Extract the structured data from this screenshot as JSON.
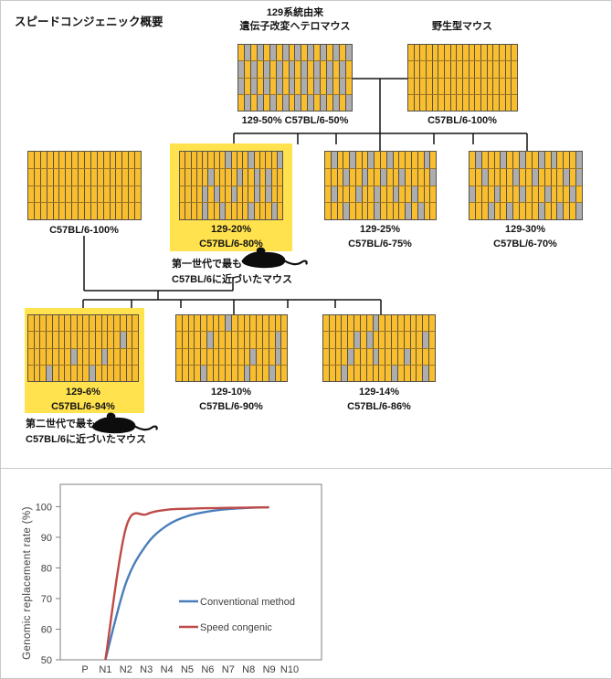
{
  "title": "スピードコンジェニック概要",
  "colors": {
    "chromosome_b6_yellow": "#F9BE2D",
    "chromosome_129_gray": "#ADADAD",
    "highlight_yellow": "#FFE24D",
    "conventional_blue": "#4A7EBB",
    "speed_red": "#BE4B48",
    "connector_black": "#141414"
  },
  "pedigree": {
    "founder_hetero": {
      "top_line1": "129系統由来",
      "top_line2": "遺伝子改変ヘテロマウス",
      "bottom": "129-50% C57BL/6-50%",
      "pattern": [
        "YGYGYGYGYGYGYGYGYG",
        "GYGYGYGYGYGYGYGYGY",
        "GYGYGYGYGYGYGYGYGY",
        "YGYGYGYGYGYGYGYGYG"
      ]
    },
    "founder_wild": {
      "top_line1": "野生型マウス",
      "bottom": "C57BL/6-100%",
      "pattern": [
        "YYYYYYYYYYYYYYYYYY",
        "YYYYYYYYYYYYYYYYYY",
        "YYYYYYYYYYYYYYYYYY",
        "YYYYYYYYYYYYYYYYYY"
      ]
    },
    "gen1_wild": {
      "bottom": "C57BL/6-100%",
      "pattern": [
        "YYYYYYYYYYYYYYYYYY",
        "YYYYYYYYYYYYYYYYYY",
        "YYYYYYYYYYYYYYYYYY",
        "YYYYYYYYYYYYYYYYYY"
      ]
    },
    "gen1_best": {
      "line1": "129-20%",
      "line2": "C57BL/6-80%",
      "highlighted": true,
      "pattern": [
        "YYYYYYYYGYYYGYYYYG",
        "YYYYYGYYYYGYYGYGYY",
        "YYYYGYGYYGYYYGYGYY",
        "YYYYGYYGYYYYGYYYGY"
      ]
    },
    "gen1_b": {
      "line1": "129-25%",
      "line2": "C57BL/6-75%",
      "pattern": [
        "YGYYGYYGYYGYYYYYGY",
        "YYYGYYGYYGYYGYYYYG",
        "YGYYYGYYGYYGYYGYYY",
        "YYYGYYYYGYYYYGYGYY"
      ]
    },
    "gen1_c": {
      "line1": "129-30%",
      "line2": "C57BL/6-70%",
      "pattern": [
        "YGYYYGYYGYYGYGYYYG",
        "YYGYYYYGYYGYYYYGYG",
        "GYYYGYYYGYYYGYYYGY",
        "YYYGYYGYYYYGYYGYYG"
      ]
    },
    "note_gen1": {
      "line1": "第一世代で最も",
      "line2": "C57BL/6に近づいたマウス"
    },
    "gen2_best": {
      "line1": "129-6%",
      "line2": "C57BL/6-94%",
      "highlighted": true,
      "pattern": [
        "YYYYYYYYYYYYYYYYYY",
        "YYYYYYYYYYYYYYYGYY",
        "YYYYYYYGYYYYGYYYYY",
        "YYYGYYYYYYGYYYYYYY"
      ]
    },
    "gen2_b": {
      "line1": "129-10%",
      "line2": "C57BL/6-90%",
      "pattern": [
        "YYYYYYYYGYYYYYYYYY",
        "YYYYYGYYYYYYYYYYGY",
        "YYYYYYYYYYYYGYYYGY",
        "YYYYGYYYYYYGYYYGYY"
      ]
    },
    "gen2_c": {
      "line1": "129-14%",
      "line2": "C57BL/6-86%",
      "pattern": [
        "YYYYYYYYGYYYYYYYYY",
        "YYYYYGYGYYYYYYYYGY",
        "YYYYGYYYGYYYYGYYYY",
        "YYYGYYYYYYYGYYYYGY"
      ]
    },
    "note_gen2": {
      "line1": "第二世代で最も",
      "line2": "C57BL/6に近づいたマウス"
    }
  },
  "chart_data": {
    "type": "line",
    "ylabel": "Genomic replacement rate (%)",
    "x_categories": [
      "P",
      "N1",
      "N2",
      "N3",
      "N4",
      "N5",
      "N6",
      "N7",
      "N8",
      "N9",
      "N10"
    ],
    "y_ticks": [
      50,
      60,
      70,
      80,
      90,
      100
    ],
    "ylim": [
      50,
      107
    ],
    "grid": false,
    "legend_position": "inside-right",
    "series": [
      {
        "name": "Conventional method",
        "color": "#4A7EBB",
        "x": [
          "N1",
          "N2",
          "N3",
          "N4",
          "N5",
          "N6",
          "N7",
          "N8",
          "N9"
        ],
        "values": [
          50,
          75,
          87.5,
          93.8,
          96.9,
          98.4,
          99.2,
          99.6,
          99.8
        ]
      },
      {
        "name": "Speed congenic",
        "color": "#BE4B48",
        "x": [
          "N1",
          "N2",
          "N3",
          "N4",
          "N5",
          "N6",
          "N7",
          "N8",
          "N9"
        ],
        "values": [
          50,
          93,
          97.5,
          99,
          99.3,
          99.5,
          99.6,
          99.7,
          99.8
        ]
      }
    ]
  }
}
